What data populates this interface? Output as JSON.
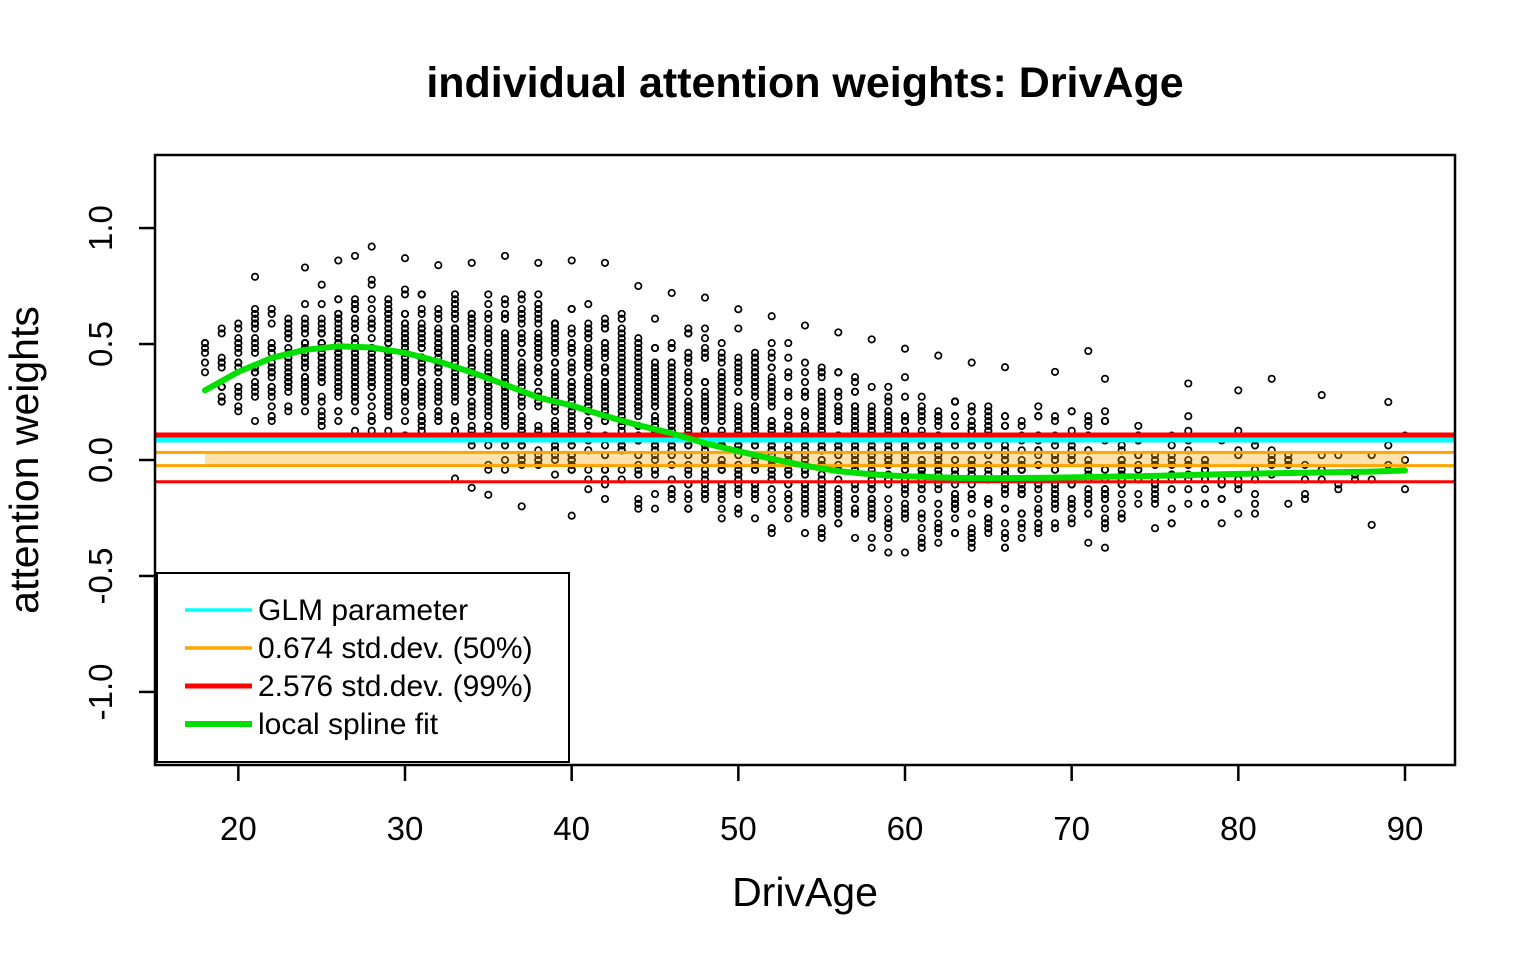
{
  "chart_data": {
    "type": "scatter",
    "title": "individual attention weights: DrivAge",
    "xlabel": "DrivAge",
    "ylabel": "attention weights",
    "x_ticks": [
      20,
      30,
      40,
      50,
      60,
      70,
      80,
      90
    ],
    "y_ticks": [
      {
        "value": 1.0,
        "label": "1.0"
      },
      {
        "value": 0.5,
        "label": "0.5"
      },
      {
        "value": 0.0,
        "label": "0.0"
      },
      {
        "value": -0.5,
        "label": "-0.5"
      },
      {
        "value": -1.0,
        "label": "-1.0"
      }
    ],
    "xlim": [
      15,
      93
    ],
    "ylim": [
      -1.315,
      1.315
    ],
    "grid": false,
    "point_style": {
      "shape": "open-circle",
      "color": "#000000",
      "radius": 3.2,
      "stroke_width": 1.7
    },
    "hlines": [
      {
        "name": "upper-99-line",
        "value": 0.108,
        "color": "#FF0000",
        "width": 5
      },
      {
        "name": "glm-parameter-line",
        "value": 0.086,
        "color": "#00FFFF",
        "width": 5
      },
      {
        "name": "upper-50-line",
        "value": 0.033,
        "color": "#FFA500",
        "width": 3
      },
      {
        "name": "lower-50-line",
        "value": -0.024,
        "color": "#FFA500",
        "width": 3
      },
      {
        "name": "lower-99-line",
        "value": -0.094,
        "color": "#FF0000",
        "width": 3
      }
    ],
    "band": {
      "x_from": 18,
      "x_to": 90,
      "y_from": -0.024,
      "y_to": 0.033,
      "color": "rgba(255,165,0,0.32)"
    },
    "spline": {
      "name": "local-spline-fit",
      "color": "#00DF00",
      "width": 6,
      "points": [
        [
          18,
          0.3
        ],
        [
          20,
          0.38
        ],
        [
          22,
          0.44
        ],
        [
          24,
          0.475
        ],
        [
          26,
          0.49
        ],
        [
          28,
          0.485
        ],
        [
          30,
          0.462
        ],
        [
          32,
          0.425
        ],
        [
          34,
          0.378
        ],
        [
          36,
          0.325
        ],
        [
          38,
          0.27
        ],
        [
          40,
          0.235
        ],
        [
          42,
          0.19
        ],
        [
          44,
          0.15
        ],
        [
          46,
          0.115
        ],
        [
          48,
          0.072
        ],
        [
          50,
          0.038
        ],
        [
          52,
          0.005
        ],
        [
          54,
          -0.025
        ],
        [
          56,
          -0.048
        ],
        [
          58,
          -0.062
        ],
        [
          60,
          -0.07
        ],
        [
          62,
          -0.075
        ],
        [
          64,
          -0.078
        ],
        [
          66,
          -0.078
        ],
        [
          68,
          -0.077
        ],
        [
          70,
          -0.075
        ],
        [
          72,
          -0.072
        ],
        [
          74,
          -0.07
        ],
        [
          76,
          -0.067
        ],
        [
          78,
          -0.063
        ],
        [
          80,
          -0.06
        ],
        [
          82,
          -0.057
        ],
        [
          84,
          -0.055
        ],
        [
          86,
          -0.052
        ],
        [
          88,
          -0.05
        ],
        [
          90,
          -0.045
        ]
      ]
    },
    "scatter_columns": [
      [
        18,
        6,
        0.28,
        0.55,
        []
      ],
      [
        19,
        12,
        0.2,
        0.63,
        []
      ],
      [
        20,
        16,
        0.16,
        0.7,
        []
      ],
      [
        21,
        22,
        0.13,
        0.73,
        [
          0.79
        ]
      ],
      [
        22,
        28,
        0.12,
        0.76,
        []
      ],
      [
        23,
        34,
        0.11,
        0.77,
        []
      ],
      [
        24,
        38,
        0.1,
        0.76,
        [
          0.83
        ]
      ],
      [
        25,
        42,
        0.1,
        0.78,
        []
      ],
      [
        26,
        46,
        0.09,
        0.79,
        [
          0.86
        ]
      ],
      [
        27,
        48,
        0.09,
        0.8,
        [
          0.88
        ]
      ],
      [
        28,
        50,
        0.08,
        0.8,
        [
          0.92
        ]
      ],
      [
        29,
        50,
        0.08,
        0.8,
        []
      ],
      [
        30,
        52,
        0.07,
        0.79,
        [
          0.87
        ]
      ],
      [
        31,
        52,
        0.06,
        0.78,
        []
      ],
      [
        32,
        52,
        0.05,
        0.78,
        [
          0.84
        ]
      ],
      [
        33,
        52,
        0.02,
        0.77,
        [
          -0.08
        ]
      ],
      [
        34,
        52,
        -0.02,
        0.77,
        [
          0.85,
          -0.12
        ]
      ],
      [
        35,
        54,
        -0.05,
        0.76,
        [
          -0.15
        ]
      ],
      [
        36,
        54,
        -0.08,
        0.76,
        [
          0.88
        ]
      ],
      [
        37,
        54,
        -0.1,
        0.75,
        [
          -0.2
        ]
      ],
      [
        38,
        54,
        -0.12,
        0.75,
        [
          0.85
        ]
      ],
      [
        39,
        54,
        -0.15,
        0.74,
        []
      ],
      [
        40,
        54,
        -0.17,
        0.73,
        [
          0.86,
          -0.24
        ]
      ],
      [
        41,
        54,
        -0.19,
        0.72,
        []
      ],
      [
        42,
        54,
        -0.21,
        0.72,
        [
          0.85
        ]
      ],
      [
        43,
        54,
        -0.23,
        0.7,
        []
      ],
      [
        44,
        54,
        -0.25,
        0.7,
        [
          0.75
        ]
      ],
      [
        45,
        54,
        -0.27,
        0.68,
        []
      ],
      [
        46,
        54,
        -0.29,
        0.66,
        [
          0.72
        ]
      ],
      [
        47,
        54,
        -0.3,
        0.64,
        []
      ],
      [
        48,
        54,
        -0.31,
        0.62,
        [
          0.7
        ]
      ],
      [
        49,
        54,
        -0.32,
        0.6,
        []
      ],
      [
        50,
        54,
        -0.33,
        0.58,
        [
          0.65
        ]
      ],
      [
        51,
        52,
        -0.34,
        0.56,
        []
      ],
      [
        52,
        52,
        -0.35,
        0.54,
        [
          0.62
        ]
      ],
      [
        53,
        52,
        -0.36,
        0.52,
        []
      ],
      [
        54,
        50,
        -0.37,
        0.5,
        [
          0.58
        ]
      ],
      [
        55,
        50,
        -0.38,
        0.48,
        []
      ],
      [
        56,
        48,
        -0.39,
        0.46,
        [
          0.55
        ]
      ],
      [
        57,
        48,
        -0.4,
        0.44,
        []
      ],
      [
        58,
        46,
        -0.4,
        0.42,
        [
          0.52
        ]
      ],
      [
        59,
        44,
        -0.41,
        0.4,
        []
      ],
      [
        60,
        44,
        -0.42,
        0.38,
        [
          0.48
        ]
      ],
      [
        61,
        42,
        -0.42,
        0.36,
        []
      ],
      [
        62,
        40,
        -0.43,
        0.34,
        [
          0.45
        ]
      ],
      [
        63,
        38,
        -0.43,
        0.33,
        []
      ],
      [
        64,
        36,
        -0.43,
        0.32,
        [
          0.42
        ]
      ],
      [
        65,
        34,
        -0.43,
        0.3,
        []
      ],
      [
        66,
        32,
        -0.42,
        0.3,
        [
          0.4
        ]
      ],
      [
        67,
        30,
        -0.42,
        0.28,
        []
      ],
      [
        68,
        28,
        -0.42,
        0.28,
        []
      ],
      [
        69,
        26,
        -0.41,
        0.27,
        [
          0.38
        ]
      ],
      [
        70,
        24,
        -0.41,
        0.26,
        []
      ],
      [
        71,
        22,
        -0.4,
        0.26,
        [
          0.47
        ]
      ],
      [
        72,
        20,
        -0.4,
        0.25,
        [
          0.35
        ]
      ],
      [
        73,
        18,
        -0.39,
        0.24,
        []
      ],
      [
        74,
        16,
        -0.38,
        0.24,
        []
      ],
      [
        75,
        14,
        -0.38,
        0.23,
        []
      ],
      [
        76,
        12,
        -0.36,
        0.22,
        []
      ],
      [
        77,
        11,
        -0.35,
        0.22,
        [
          0.33
        ]
      ],
      [
        78,
        10,
        -0.34,
        0.21,
        []
      ],
      [
        79,
        9,
        -0.33,
        0.2,
        []
      ],
      [
        80,
        8,
        -0.32,
        0.2,
        [
          0.3
        ]
      ],
      [
        81,
        7,
        -0.3,
        0.19,
        []
      ],
      [
        82,
        6,
        -0.28,
        0.18,
        [
          0.35
        ]
      ],
      [
        83,
        5,
        -0.26,
        0.17,
        []
      ],
      [
        84,
        4,
        -0.24,
        0.16,
        []
      ],
      [
        85,
        4,
        -0.22,
        0.15,
        [
          0.28
        ]
      ],
      [
        86,
        3,
        -0.2,
        0.14,
        []
      ],
      [
        87,
        3,
        -0.18,
        0.13,
        []
      ],
      [
        88,
        3,
        -0.15,
        0.12,
        [
          -0.28
        ]
      ],
      [
        89,
        2,
        -0.1,
        0.1,
        [
          0.25
        ]
      ],
      [
        90,
        3,
        -0.16,
        0.21,
        []
      ]
    ],
    "legend": {
      "position": "bottom-left",
      "entries": [
        {
          "label": "GLM parameter",
          "color": "#00FFFF",
          "line_width": 3.5
        },
        {
          "label": "0.674 std.dev. (50%)",
          "color": "#FFA500",
          "line_width": 3.5
        },
        {
          "label": "2.576 std.dev. (99%)",
          "color": "#FF0000",
          "line_width": 5
        },
        {
          "label": "local spline fit",
          "color": "#00DF00",
          "line_width": 6
        }
      ]
    }
  }
}
